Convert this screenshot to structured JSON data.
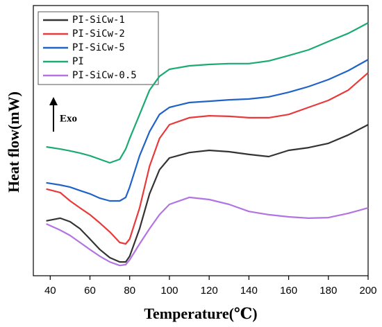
{
  "chart_data": {
    "type": "line",
    "x_label": "Temperature(℃)",
    "y_label": "Heat flow(mW)",
    "annotation": "Exo",
    "x": [
      38,
      45,
      50,
      55,
      60,
      65,
      70,
      75,
      78,
      80,
      85,
      90,
      95,
      100,
      110,
      120,
      130,
      140,
      150,
      160,
      170,
      180,
      190,
      200
    ],
    "xlim": [
      31.5,
      200
    ],
    "xticks": [
      40,
      60,
      80,
      100,
      120,
      140,
      160,
      180,
      200
    ],
    "ylim": [
      0,
      100
    ],
    "legend": "upper-left",
    "series": [
      {
        "name": "PI-SiCw-1",
        "color": "#333333",
        "values": [
          20.3,
          21.3,
          20.0,
          17.4,
          13.6,
          9.7,
          6.7,
          5.1,
          5.1,
          7.2,
          17.4,
          30.3,
          39.2,
          43.6,
          45.6,
          46.4,
          45.9,
          44.9,
          44.1,
          46.4,
          47.4,
          49.0,
          52.1,
          55.9
        ]
      },
      {
        "name": "PI-SiCw-2",
        "color": "#e83a3a",
        "values": [
          32.1,
          30.8,
          27.7,
          25.1,
          22.6,
          19.5,
          16.2,
          12.3,
          11.8,
          13.6,
          25.1,
          40.5,
          50.8,
          55.9,
          58.5,
          59.2,
          59.0,
          58.5,
          58.5,
          59.7,
          62.3,
          64.9,
          68.7,
          75.1
        ]
      },
      {
        "name": "PI-SiCw-5",
        "color": "#1f62c8",
        "values": [
          34.4,
          33.6,
          32.8,
          31.5,
          30.3,
          28.7,
          27.7,
          27.7,
          29.0,
          32.8,
          44.4,
          53.3,
          59.7,
          62.3,
          64.1,
          64.6,
          65.1,
          65.4,
          66.2,
          67.9,
          70.0,
          72.6,
          75.9,
          80.0
        ]
      },
      {
        "name": "PI",
        "color": "#1aaa72",
        "values": [
          47.7,
          46.9,
          46.2,
          45.4,
          44.4,
          43.1,
          41.8,
          43.1,
          46.9,
          50.8,
          59.7,
          68.7,
          73.8,
          76.4,
          77.7,
          78.2,
          78.5,
          78.5,
          79.5,
          81.5,
          83.6,
          86.7,
          89.7,
          93.6
        ]
      },
      {
        "name": "PI-SiCw-0.5",
        "color": "#b274e2",
        "values": [
          19.2,
          16.9,
          14.9,
          12.3,
          9.7,
          7.2,
          5.1,
          3.8,
          4.1,
          5.9,
          11.8,
          17.4,
          22.6,
          26.4,
          29.0,
          28.2,
          26.4,
          23.8,
          22.6,
          21.8,
          21.3,
          21.5,
          23.1,
          25.1
        ]
      }
    ]
  }
}
